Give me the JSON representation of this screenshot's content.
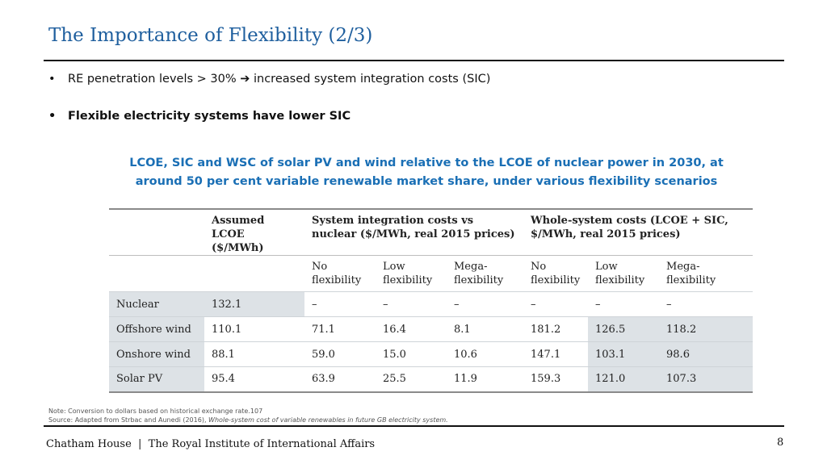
{
  "slide": {
    "title": "The Importance of Flexibility (2/3)",
    "bullets": [
      "RE penetration levels > 30% ➔ increased system integration costs (SIC)",
      "Flexible electricity systems have lower SIC"
    ],
    "bullet_glyph": "•",
    "caption": "LCOE, SIC and WSC of solar PV and wind relative to the LCOE of nuclear power in 2030, at around 50 per cent variable renewable market share, under various flexibility scenarios"
  },
  "table": {
    "group_headers": {
      "lcoe": "Assumed LCOE ($/MWh)",
      "sic": "System integration costs vs nuclear ($/MWh, real 2015 prices)",
      "wsc": "Whole-system costs (LCOE + SIC, $/MWh, real 2015 prices)"
    },
    "sub_headers": [
      "No flexibility",
      "Low flexibility",
      "Mega-flexibility",
      "No flexibility",
      "Low flexibility",
      "Mega-flexibility"
    ],
    "rows": [
      {
        "label": "Nuclear",
        "cells": [
          "132.1",
          "–",
          "–",
          "–",
          "–",
          "–",
          "–"
        ]
      },
      {
        "label": "Offshore wind",
        "cells": [
          "110.1",
          "71.1",
          "16.4",
          "8.1",
          "181.2",
          "126.5",
          "118.2"
        ]
      },
      {
        "label": "Onshore wind",
        "cells": [
          "88.1",
          "59.0",
          "15.0",
          "10.6",
          "147.1",
          "103.1",
          "98.6"
        ]
      },
      {
        "label": "Solar PV",
        "cells": [
          "95.4",
          "63.9",
          "25.5",
          "11.9",
          "159.3",
          "121.0",
          "107.3"
        ]
      }
    ]
  },
  "note": {
    "line1": "Note: Conversion to dollars based on historical exchange rate.107",
    "line2_prefix": "Source: Adapted from Strbac and Aunedi (2016), ",
    "line2_italic": "Whole-system cost of variable renewables in future GB electricity system."
  },
  "footer": {
    "text": "Chatham House  |  The Royal Institute of International Affairs",
    "page_number": "8"
  },
  "colors": {
    "title": "#1f5f9e",
    "caption": "#1a6fb5",
    "table_shading": "#dde2e6"
  }
}
